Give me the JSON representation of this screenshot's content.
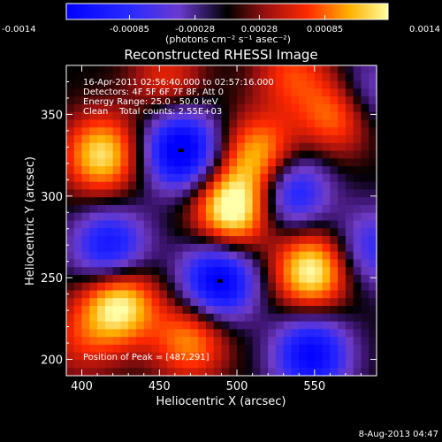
{
  "chart_data": {
    "type": "heatmap",
    "title": "Reconstructed RHESSI Image",
    "xlabel": "Heliocentric X (arcsec)",
    "ylabel": "Heliocentric Y (arcsec)",
    "xlim": [
      390,
      590
    ],
    "ylim": [
      190,
      380
    ],
    "x_ticks": [
      "400",
      "450",
      "500",
      "550"
    ],
    "y_ticks": [
      "200",
      "250",
      "300",
      "350"
    ],
    "colorbar": {
      "ticks": [
        "-0.0014",
        "-0.00085",
        "-0.00028",
        "0.00028",
        "0.00085",
        "0.0014"
      ],
      "range": [
        -0.0014,
        0.0014
      ],
      "unit_label": "(photons cm⁻² s⁻¹ asec⁻²)"
    },
    "annotations": [
      "16-Apr-2011 02:56:40.000 to 02:57:16.000",
      "Detectors: 4F 5F 6F 7F 8F, Att 0",
      "Energy Range: 25.0 - 50.0 keV",
      "Clean    Total counts: 2.55E+03"
    ],
    "peak_label": "Position of Peak = [487,291]",
    "blobs": [
      {
        "x": 464,
        "y": 328,
        "v": -1.0
      },
      {
        "x": 488,
        "y": 248,
        "v": -0.95
      },
      {
        "x": 548,
        "y": 203,
        "v": -0.85
      },
      {
        "x": 418,
        "y": 268,
        "v": -0.75
      },
      {
        "x": 535,
        "y": 303,
        "v": -0.7
      },
      {
        "x": 587,
        "y": 268,
        "v": -0.5
      },
      {
        "x": 583,
        "y": 362,
        "v": -0.4
      },
      {
        "x": 497,
        "y": 292,
        "v": 1.0
      },
      {
        "x": 515,
        "y": 325,
        "v": 0.7
      },
      {
        "x": 413,
        "y": 325,
        "v": 0.8
      },
      {
        "x": 424,
        "y": 234,
        "v": 0.9
      },
      {
        "x": 548,
        "y": 254,
        "v": 0.9
      },
      {
        "x": 470,
        "y": 212,
        "v": 0.6
      },
      {
        "x": 565,
        "y": 350,
        "v": 0.6
      },
      {
        "x": 535,
        "y": 375,
        "v": 0.4
      },
      {
        "x": 455,
        "y": 372,
        "v": 0.35
      },
      {
        "x": 400,
        "y": 212,
        "v": 0.3
      }
    ],
    "markers": [
      {
        "x": 464,
        "y": 328
      },
      {
        "x": 489,
        "y": 248
      }
    ]
  },
  "timestamp": "8-Aug-2013 04:47"
}
